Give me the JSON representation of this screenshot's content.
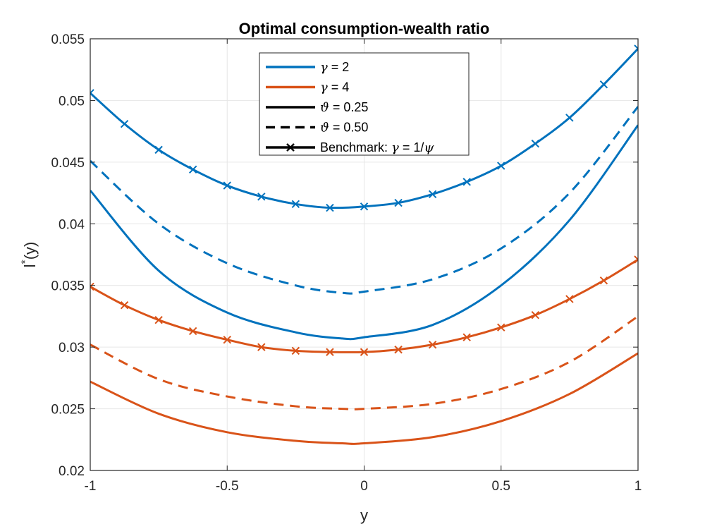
{
  "chart_data": {
    "type": "line",
    "title": "Optimal consumption-wealth ratio",
    "xlabel": "y",
    "ylabel_base": "l",
    "ylabel_sup": "*",
    "ylabel_tail": "(y)",
    "xlim": [
      -1,
      1
    ],
    "ylim": [
      0.02,
      0.055
    ],
    "x_ticks": [
      -1,
      -0.5,
      0,
      0.5,
      1
    ],
    "x_tick_labels": [
      "-1",
      "-0.5",
      "0",
      "0.5",
      "1"
    ],
    "y_ticks": [
      0.02,
      0.025,
      0.03,
      0.035,
      0.04,
      0.045,
      0.05,
      0.055
    ],
    "y_tick_labels": [
      "0.02",
      "0.025",
      "0.03",
      "0.035",
      "0.04",
      "0.045",
      "0.05",
      "0.055"
    ],
    "grid": true,
    "legend_position": "top-center",
    "colors": {
      "blue": "#0072BD",
      "orange": "#D95319",
      "black": "#000000",
      "grid": "#e6e6e6",
      "axis": "#262626"
    },
    "legend": [
      {
        "sym": "γ",
        "text": " = 2",
        "color": "#0072BD",
        "style": "solid",
        "marker": false
      },
      {
        "sym": "γ",
        "text": " = 4",
        "color": "#D95319",
        "style": "solid",
        "marker": false
      },
      {
        "sym": "ϑ",
        "text": " = 0.25",
        "color": "#000000",
        "style": "solid",
        "marker": false
      },
      {
        "sym": "ϑ",
        "text": " = 0.50",
        "color": "#000000",
        "style": "dashed",
        "marker": false
      },
      {
        "text_pre": "Benchmark: ",
        "sym": "γ",
        "text": " = 1/",
        "sym2": "ψ",
        "color": "#000000",
        "style": "solid",
        "marker": true
      }
    ],
    "series": [
      {
        "color": "#0072BD",
        "style": "solid",
        "marker": true,
        "x": [
          -1,
          -0.875,
          -0.75,
          -0.625,
          -0.5,
          -0.375,
          -0.25,
          -0.125,
          0,
          0.125,
          0.25,
          0.375,
          0.5,
          0.625,
          0.75,
          0.875,
          1
        ],
        "y": [
          0.0506,
          0.0481,
          0.046,
          0.0444,
          0.0431,
          0.0422,
          0.0416,
          0.0413,
          0.0414,
          0.0417,
          0.0424,
          0.0434,
          0.0447,
          0.0465,
          0.0486,
          0.0513,
          0.0542
        ]
      },
      {
        "color": "#0072BD",
        "style": "dashed",
        "marker": false,
        "x": [
          -1,
          -0.75,
          -0.5,
          -0.25,
          -0.08,
          0,
          0.25,
          0.5,
          0.75,
          1
        ],
        "y": [
          0.0451,
          0.04,
          0.0368,
          0.035,
          0.0344,
          0.0345,
          0.0355,
          0.038,
          0.0425,
          0.0495
        ]
      },
      {
        "color": "#0072BD",
        "style": "solid",
        "marker": false,
        "x": [
          -1,
          -0.75,
          -0.5,
          -0.25,
          -0.08,
          0,
          0.25,
          0.5,
          0.75,
          1
        ],
        "y": [
          0.0427,
          0.0362,
          0.0328,
          0.0312,
          0.0307,
          0.0308,
          0.0318,
          0.035,
          0.0403,
          0.048
        ]
      },
      {
        "color": "#D95319",
        "style": "solid",
        "marker": true,
        "x": [
          -1,
          -0.875,
          -0.75,
          -0.625,
          -0.5,
          -0.375,
          -0.25,
          -0.125,
          0,
          0.125,
          0.25,
          0.375,
          0.5,
          0.625,
          0.75,
          0.875,
          1
        ],
        "y": [
          0.0349,
          0.0334,
          0.0322,
          0.0313,
          0.0306,
          0.03,
          0.0297,
          0.0296,
          0.0296,
          0.0298,
          0.0302,
          0.0308,
          0.0316,
          0.0326,
          0.0339,
          0.0354,
          0.0371
        ]
      },
      {
        "color": "#D95319",
        "style": "dashed",
        "marker": false,
        "x": [
          -1,
          -0.75,
          -0.5,
          -0.25,
          -0.08,
          0,
          0.25,
          0.5,
          0.75,
          1
        ],
        "y": [
          0.0302,
          0.0274,
          0.026,
          0.0252,
          0.025,
          0.025,
          0.0254,
          0.0266,
          0.0288,
          0.0325
        ]
      },
      {
        "color": "#D95319",
        "style": "solid",
        "marker": false,
        "x": [
          -1,
          -0.75,
          -0.5,
          -0.25,
          -0.08,
          0,
          0.25,
          0.5,
          0.75,
          1
        ],
        "y": [
          0.0272,
          0.0246,
          0.0231,
          0.0224,
          0.0222,
          0.0222,
          0.0227,
          0.024,
          0.0262,
          0.0295
        ]
      }
    ]
  }
}
